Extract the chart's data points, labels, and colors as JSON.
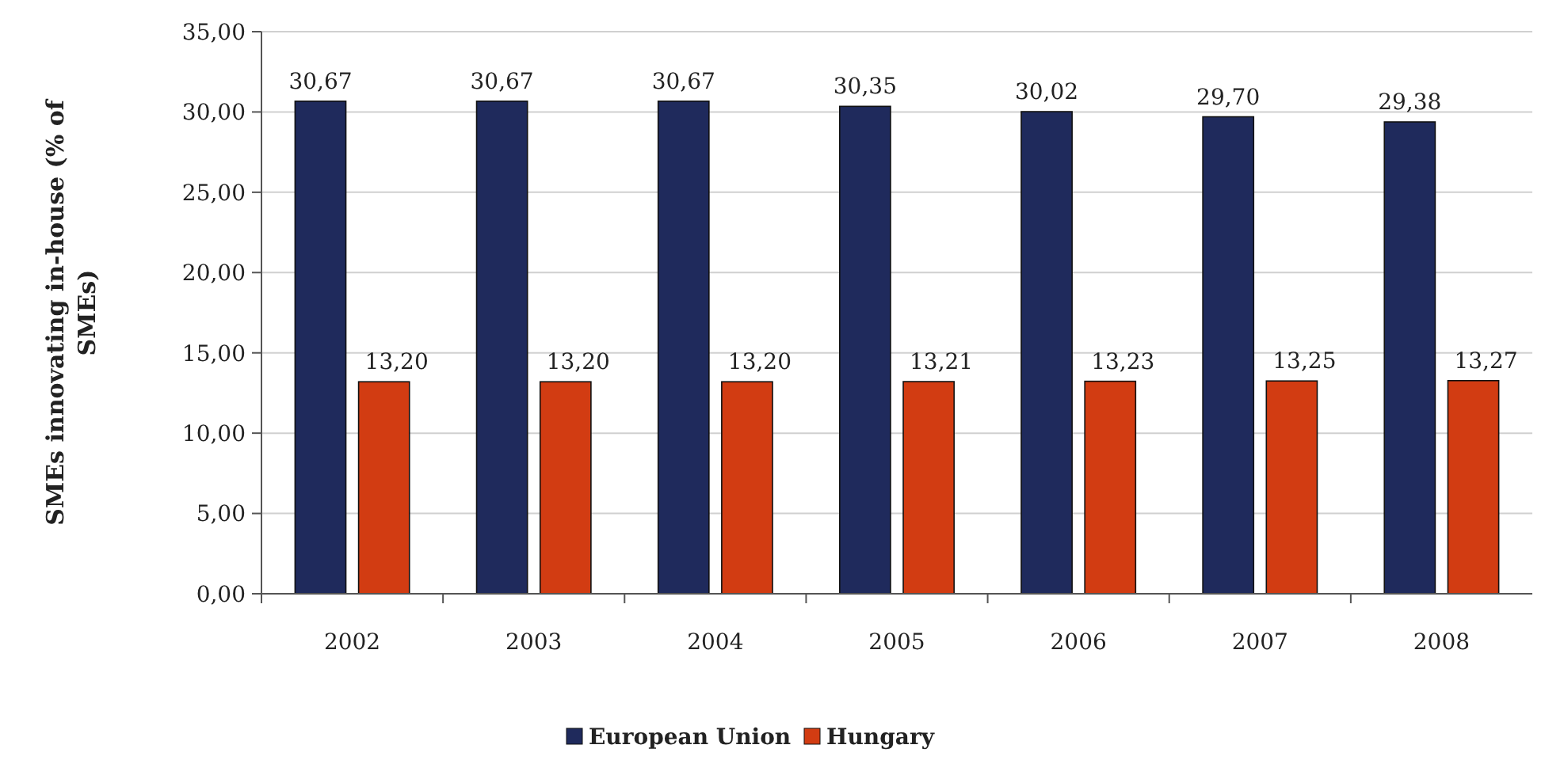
{
  "chart_data": {
    "type": "bar",
    "ylabel": "SMEs innovating in-house (% of SMEs)",
    "categories": [
      "2002",
      "2003",
      "2004",
      "2005",
      "2006",
      "2007",
      "2008"
    ],
    "series": [
      {
        "name": "European Union",
        "color": "#1f2a5c",
        "values": [
          30.67,
          30.67,
          30.67,
          30.35,
          30.02,
          29.7,
          29.38
        ],
        "value_labels": [
          "30,67",
          "30,67",
          "30,67",
          "30,35",
          "30,02",
          "29,70",
          "29,38"
        ]
      },
      {
        "name": "Hungary",
        "color": "#d23c12",
        "values": [
          13.2,
          13.2,
          13.2,
          13.21,
          13.23,
          13.25,
          13.27
        ],
        "value_labels": [
          "13,20",
          "13,20",
          "13,20",
          "13,21",
          "13,23",
          "13,25",
          "13,27"
        ]
      }
    ],
    "ylim": [
      0,
      35
    ],
    "yticks": [
      {
        "value": 0,
        "label": "0,00"
      },
      {
        "value": 5,
        "label": "5,00"
      },
      {
        "value": 10,
        "label": "10,00"
      },
      {
        "value": 15,
        "label": "15,00"
      },
      {
        "value": 20,
        "label": "20,00"
      },
      {
        "value": 25,
        "label": "25,00"
      },
      {
        "value": 30,
        "label": "30,00"
      },
      {
        "value": 35,
        "label": "35,00"
      }
    ],
    "grid": "y",
    "legend": "bottom"
  }
}
